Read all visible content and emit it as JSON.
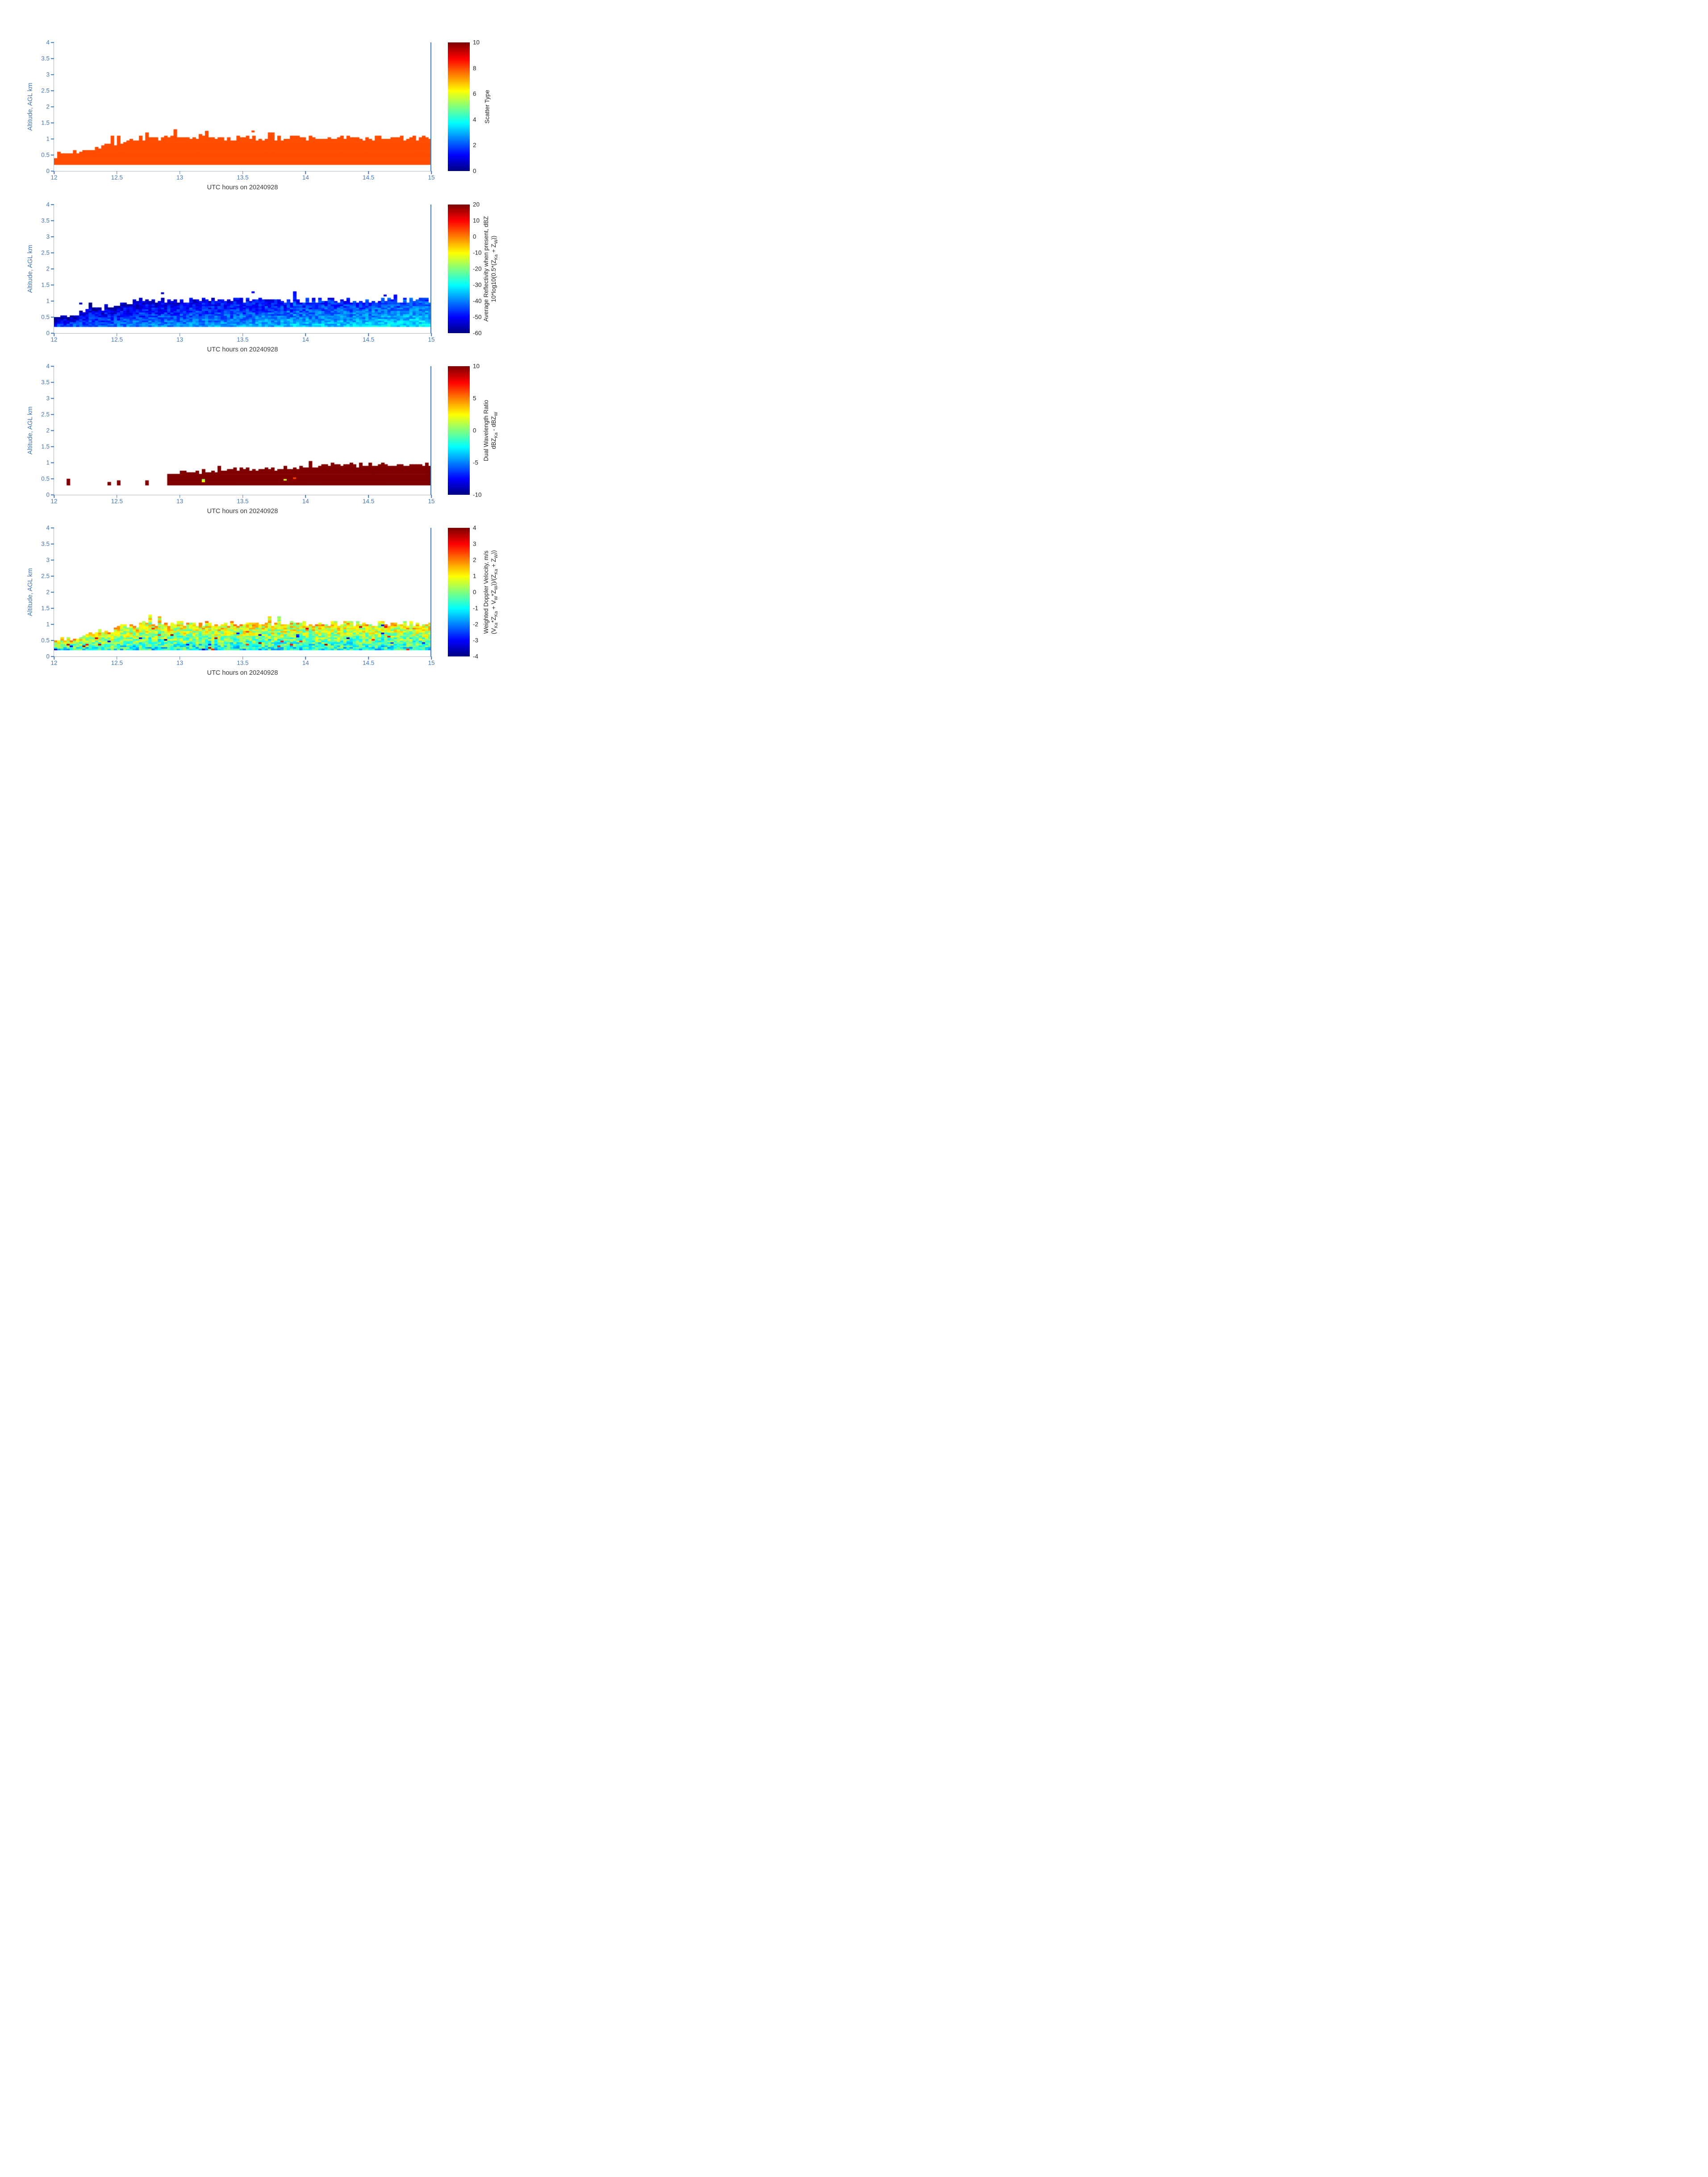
{
  "page": {
    "background": "#ffffff"
  },
  "axes_style": {
    "tick_text_color": "#4577b8",
    "axis_line_color": "#a9b6c2",
    "axis_label_color": "#3a3a3a",
    "colorbar_text_color": "#262626",
    "right_boundary_line_color": "#3e7fc4"
  },
  "chart_data": [
    {
      "id": "scatter-type",
      "type": "heatmap",
      "xlabel": "UTC hours on 20240928",
      "ylabel": "Altitude, AGL km",
      "xlim": [
        12,
        15
      ],
      "ylim": [
        0,
        4
      ],
      "x_ticks": [
        12,
        12.5,
        13,
        13.5,
        14,
        14.5,
        15
      ],
      "y_ticks": [
        0,
        0.5,
        1,
        1.5,
        2,
        2.5,
        3,
        3.5,
        4
      ],
      "colormap": "jet",
      "clim": [
        0,
        10
      ],
      "colorbar_ticks": [
        10,
        8,
        6,
        4,
        2,
        0
      ],
      "colorbar_label": [
        [
          {
            "t": "Scatter Type"
          }
        ]
      ],
      "description": "Uniform scatter type value ~8 (orange-red) in a shallow layer from ~0.2 km up to a ragged top near 1 km; layer top rises from ~0.5 km at 12 UTC to ~1 km by ~12.7 UTC and stays near 1 km until 15 UTC",
      "field": {
        "kind": "uniform",
        "value": 8,
        "x_bins": 120,
        "dy_km": 0.05,
        "base_km": 0.2,
        "top_start_km": 0.45,
        "top_ramp_km_per_hr": 0.8,
        "top_max_km": 1.0,
        "jitter_km": 0.09,
        "spike_prob": 0.05,
        "spike_km": 0.22,
        "outliers": [
          {
            "x": 13.57,
            "y": 1.26,
            "v": 8
          }
        ],
        "seed": 7
      }
    },
    {
      "id": "average-reflectivity",
      "type": "heatmap",
      "xlabel": "UTC hours on 20240928",
      "ylabel": "Altitude, AGL km",
      "xlim": [
        12,
        15
      ],
      "ylim": [
        0,
        4
      ],
      "x_ticks": [
        12,
        12.5,
        13,
        13.5,
        14,
        14.5,
        15
      ],
      "y_ticks": [
        0,
        0.5,
        1,
        1.5,
        2,
        2.5,
        3,
        3.5,
        4
      ],
      "colormap": "jet",
      "clim": [
        -60,
        20
      ],
      "colorbar_ticks": [
        20,
        10,
        0,
        -10,
        -20,
        -30,
        -40,
        -50,
        -60
      ],
      "colorbar_label": [
        [
          {
            "t": "Average Reflectivity when present, dBZ"
          }
        ],
        [
          {
            "t": "10*log10(0.5*(Z"
          },
          {
            "t": "Ka",
            "sub": true
          },
          {
            "t": " + Z"
          },
          {
            "t": "W",
            "sub": true
          },
          {
            "t": "))"
          }
        ]
      ],
      "description": "Weak reflectivities -60 to about -28 dBZ in the same shallow layer; darkest blue (-60 to -45 dBZ) on the left and along the layer top, brightening to cyan (-35 to -28 dBZ) in the lower part of the layer toward 15 UTC",
      "field": {
        "kind": "reflectivity",
        "x_bins": 120,
        "dy_km": 0.05,
        "base_km": 0.2,
        "top_start_km": 0.45,
        "top_ramp_km_per_hr": 0.8,
        "top_max_km": 1.0,
        "jitter_km": 0.09,
        "spike_prob": 0.05,
        "spike_km": 0.22,
        "v_base": -57,
        "v_height_gain": 15,
        "v_time_gain": 12,
        "v_noise": 5.5,
        "v_clamp": [
          -60,
          -26
        ],
        "outliers": [
          {
            "x": 13.57,
            "y": 1.3,
            "v": -50
          },
          {
            "x": 12.85,
            "y": 1.27,
            "v": -55
          },
          {
            "x": 12.2,
            "y": 0.95,
            "v": -55
          },
          {
            "x": 14.62,
            "y": 1.2,
            "v": -52
          }
        ],
        "seed": 13
      }
    },
    {
      "id": "dual-wavelength-ratio",
      "type": "heatmap",
      "xlabel": "UTC hours on 20240928",
      "ylabel": "Altitude, AGL km",
      "xlim": [
        12,
        15
      ],
      "ylim": [
        0,
        4
      ],
      "x_ticks": [
        12,
        12.5,
        13,
        13.5,
        14,
        14.5,
        15
      ],
      "y_ticks": [
        0,
        0.5,
        1,
        1.5,
        2,
        2.5,
        3,
        3.5,
        4
      ],
      "colormap": "jet",
      "clim": [
        -10,
        10
      ],
      "colorbar_ticks": [
        10,
        5,
        0,
        -5,
        -10
      ],
      "colorbar_label": [
        [
          {
            "t": "Dual Wavelength Ratio"
          }
        ],
        [
          {
            "t": "dBZ"
          },
          {
            "t": "Ka",
            "sub": true
          },
          {
            "t": " - dBZ"
          },
          {
            "t": "W",
            "sub": true
          }
        ]
      ],
      "description": "DWR saturated at ~10 dB (dark red) in a layer from ~0.3 km to ~0.9 km; sparse isolated patches before ~12.9 UTC near 0.35 km, continuous dark-red layer afterward with a few orange/yellow specks in the lower part",
      "field": {
        "kind": "dwr",
        "value": 10,
        "x_bins": 120,
        "dy_km": 0.05,
        "base_km": 0.3,
        "top_start_km": 0.5,
        "top_ramp_km_per_hr": 0.17,
        "top_max_km": 0.92,
        "jitter_km": 0.07,
        "spike_prob": 0.04,
        "spike_km": 0.15,
        "sparse_before_x": 12.9,
        "sparse_prob": 0.14,
        "speck_prob": 0.02,
        "speck_min": 0,
        "speck_max": 8,
        "outliers": [],
        "seed": 21
      }
    },
    {
      "id": "weighted-doppler-velocity",
      "type": "heatmap",
      "xlabel": "UTC hours on 20240928",
      "ylabel": "Altitude, AGL km",
      "xlim": [
        12,
        15
      ],
      "ylim": [
        0,
        4
      ],
      "x_ticks": [
        12,
        12.5,
        13,
        13.5,
        14,
        14.5,
        15
      ],
      "y_ticks": [
        0,
        0.5,
        1,
        1.5,
        2,
        2.5,
        3,
        3.5,
        4
      ],
      "colormap": "jet",
      "clim": [
        -4,
        4
      ],
      "colorbar_ticks": [
        4,
        3,
        2,
        1,
        0,
        -1,
        -2,
        -3,
        -4
      ],
      "colorbar_label": [
        [
          {
            "t": "Weighted Doppler Velocity, m/s"
          }
        ],
        [
          {
            "t": "(V"
          },
          {
            "t": "Ka",
            "sub": true
          },
          {
            "t": "*Z"
          },
          {
            "t": "Ka",
            "sub": true
          },
          {
            "t": " + V"
          },
          {
            "t": "W",
            "sub": true
          },
          {
            "t": "*Z"
          },
          {
            "t": "W",
            "sub": true
          },
          {
            "t": "))/(Z"
          },
          {
            "t": "Ka",
            "sub": true
          },
          {
            "t": " + Z"
          },
          {
            "t": "W",
            "sub": true
          },
          {
            "t": "))"
          }
        ]
      ],
      "description": "Velocities mostly between -2 and +2 m/s in the same shallow layer; yellow-green (~+0.5 to +1.5 m/s) in the upper part, cyan (~-1 to -2 m/s) speckle near the layer bottom, with occasional dark blue and red outlier pixels",
      "field": {
        "kind": "velocity",
        "x_bins": 120,
        "dy_km": 0.05,
        "base_km": 0.2,
        "top_start_km": 0.45,
        "top_ramp_km_per_hr": 0.8,
        "top_max_km": 1.0,
        "jitter_km": 0.09,
        "spike_prob": 0.05,
        "spike_km": 0.2,
        "v_top": 1.1,
        "v_height_drop": 2.1,
        "v_noise": 1.1,
        "v_clamp": [
          -3.8,
          3.8
        ],
        "speck_prob": 0.02,
        "speck_mag_min": 2.4,
        "speck_mag_max": 3.8,
        "outliers": [],
        "seed": 33
      }
    }
  ]
}
